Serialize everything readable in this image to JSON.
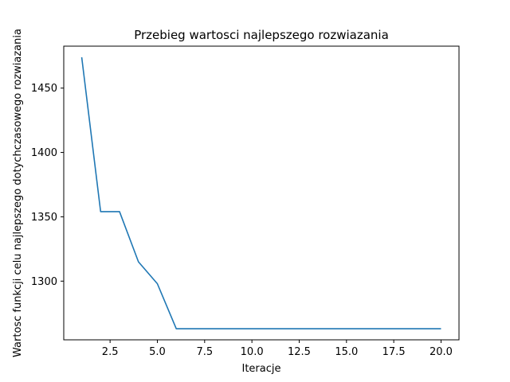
{
  "chart_data": {
    "type": "line",
    "title": "Przebieg wartosci najlepszego rozwiazania",
    "xlabel": "Iteracje",
    "ylabel": "Wartosc funkcji celu najlepszego dotychczasowego rozwiazania",
    "xlim": [
      0.05,
      20.95
    ],
    "ylim": [
      1254.4,
      1482.6
    ],
    "xticks": [
      2.5,
      5.0,
      7.5,
      10.0,
      12.5,
      15.0,
      17.5,
      20.0
    ],
    "xtick_labels": [
      "2.5",
      "5.0",
      "7.5",
      "10.0",
      "12.5",
      "15.0",
      "17.5",
      "20.0"
    ],
    "yticks": [
      1300,
      1350,
      1400,
      1450
    ],
    "ytick_labels": [
      "1300",
      "1350",
      "1400",
      "1450"
    ],
    "grid": false,
    "series": [
      {
        "color": "#1f77b4",
        "x": [
          1,
          2,
          3,
          4,
          5,
          6,
          7,
          8,
          9,
          10,
          11,
          12,
          13,
          14,
          15,
          16,
          17,
          18,
          19,
          20
        ],
        "y": [
          1474,
          1354,
          1354,
          1315,
          1298,
          1263,
          1263,
          1263,
          1263,
          1263,
          1263,
          1263,
          1263,
          1263,
          1263,
          1263,
          1263,
          1263,
          1263,
          1263
        ]
      }
    ]
  }
}
